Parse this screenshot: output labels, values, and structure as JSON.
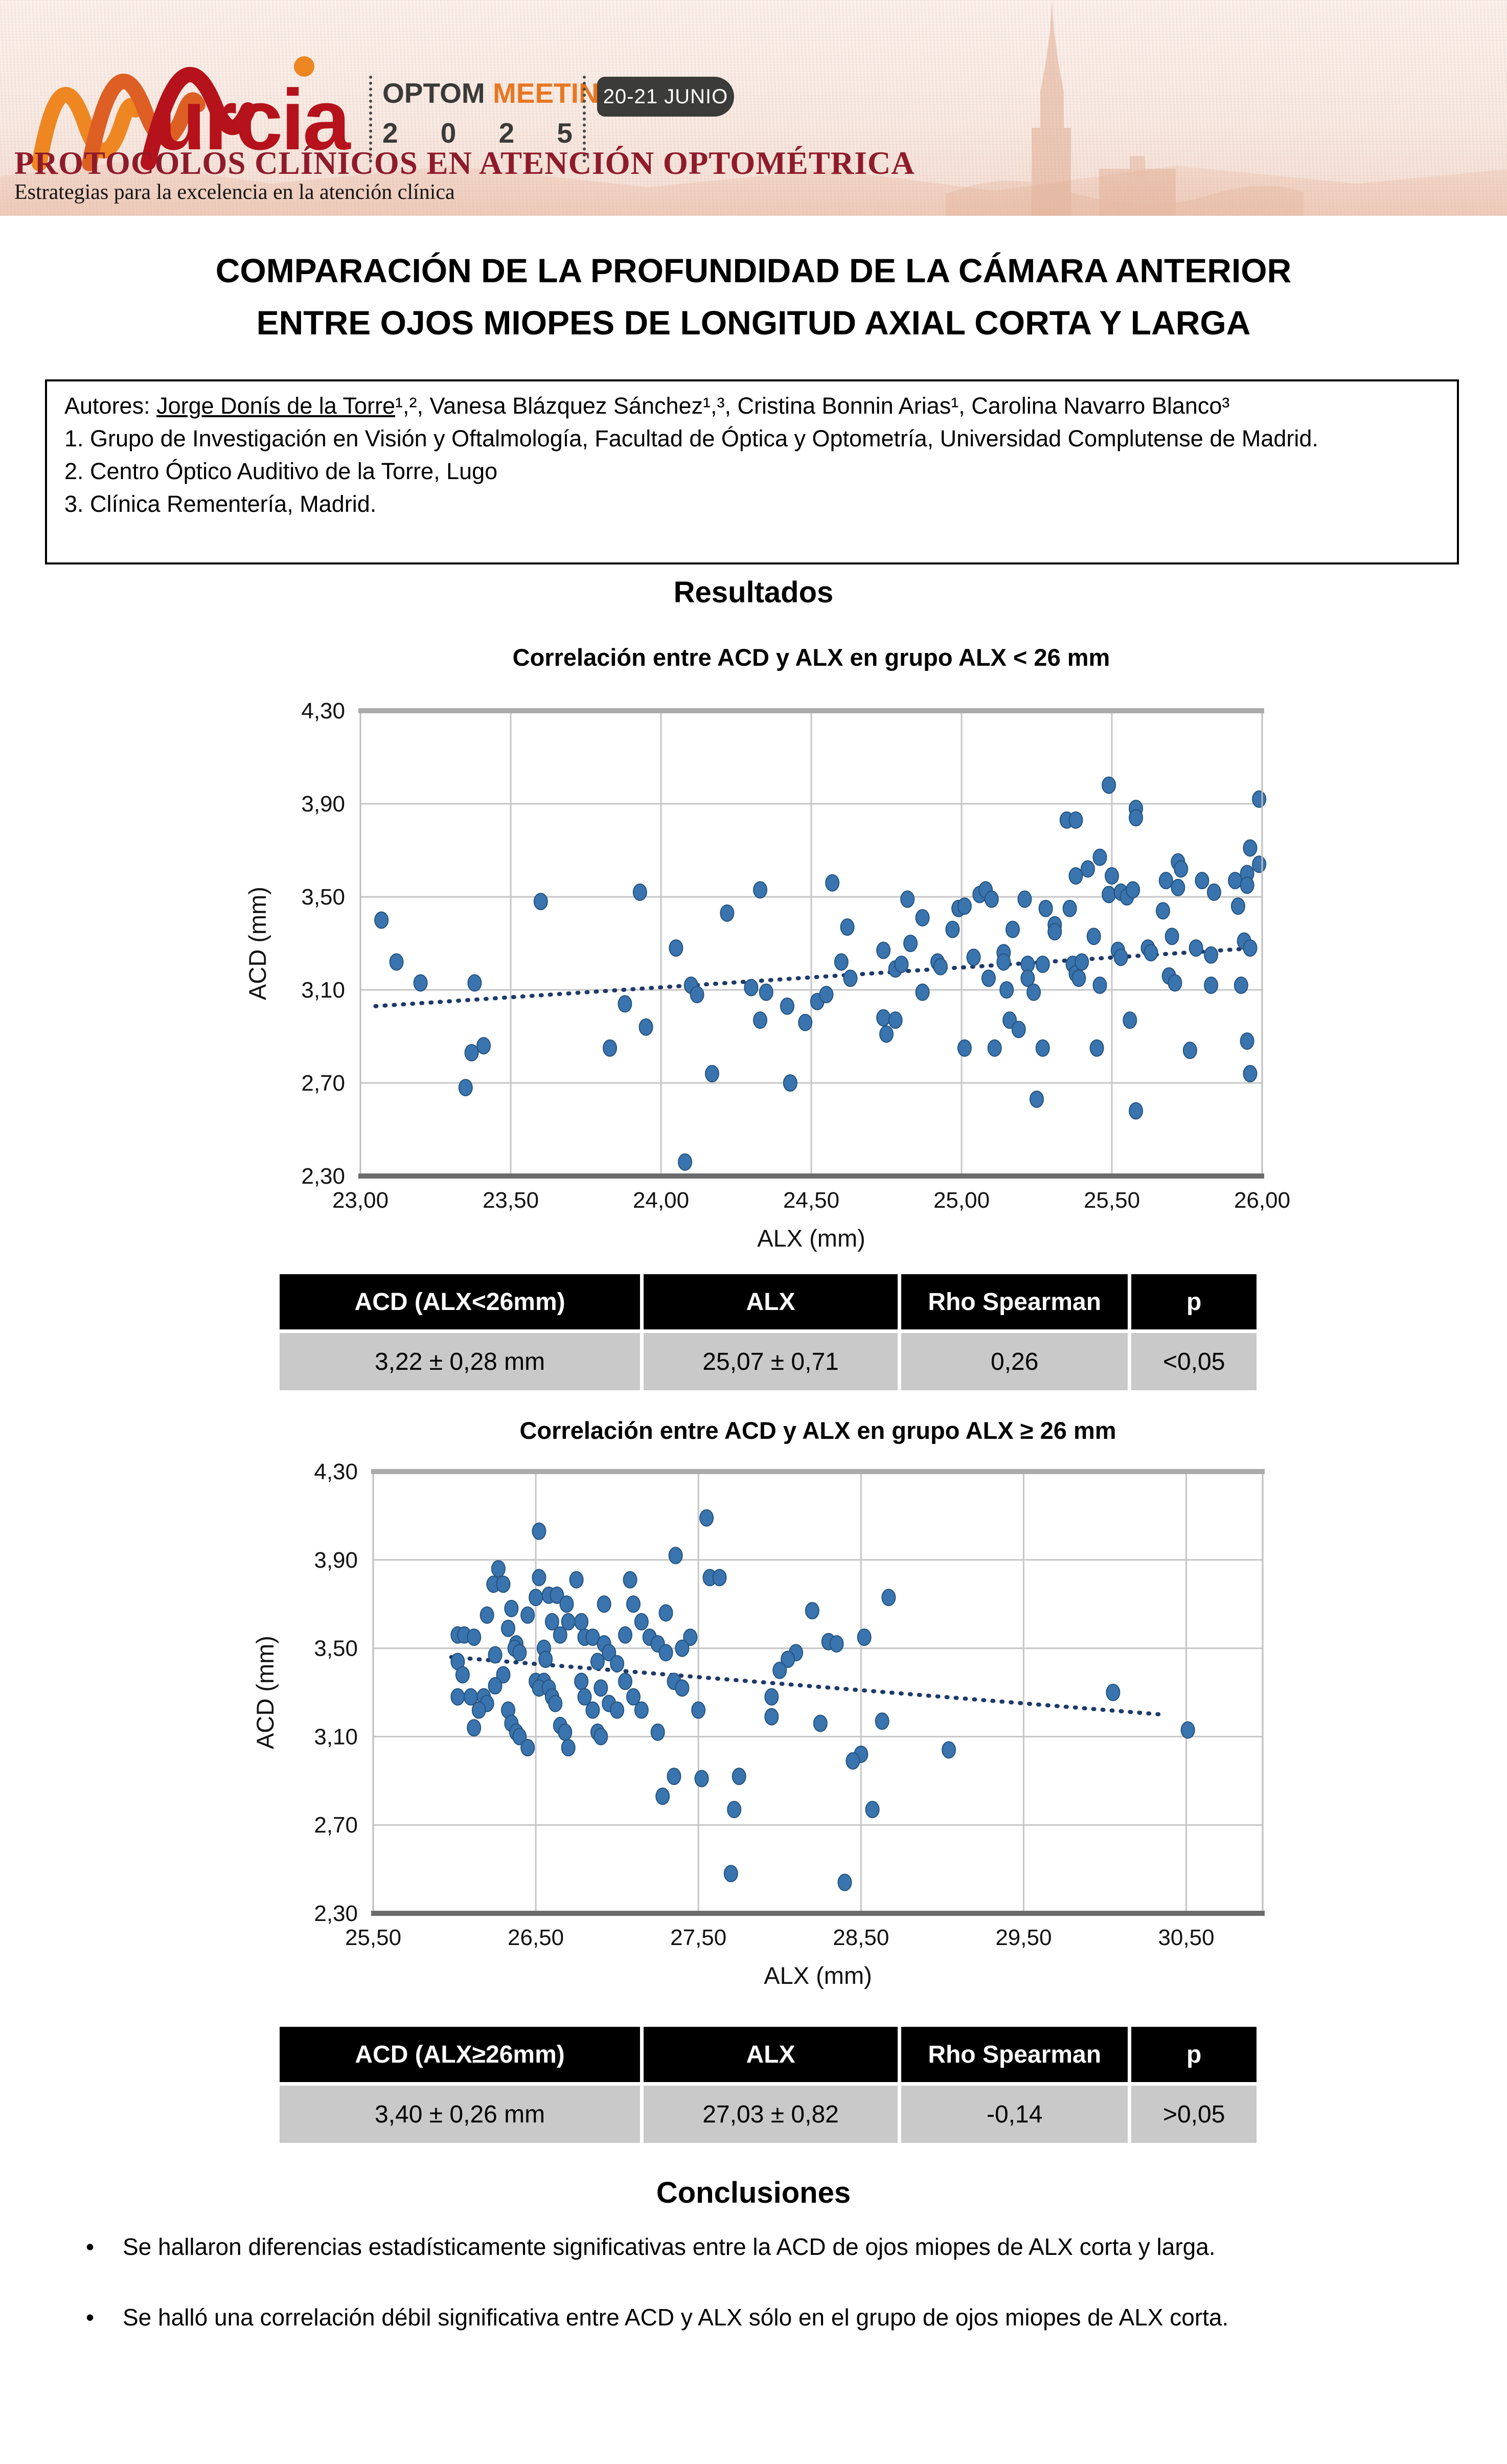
{
  "header": {
    "logo_city": "urcia",
    "brand_word1": "OPTOM",
    "brand_word2": "MEETING",
    "year_digits": [
      "2",
      "0",
      "2",
      "5"
    ],
    "date_badge": "20-21 JUNIO",
    "strapline": "PROTOCOLOS CLÍNICOS EN ATENCIÓN OPTOMÉTRICA",
    "substrapline": "Estrategias para la excelencia en la atención clínica",
    "colors": {
      "orange": "#ee8622",
      "red": "#b5121b",
      "dark": "#3b3b39",
      "strap_red": "#8e1b2b"
    }
  },
  "title_line1": "COMPARACIÓN DE LA PROFUNDIDAD DE LA CÁMARA ANTERIOR",
  "title_line2": "ENTRE OJOS MIOPES DE LONGITUD AXIAL CORTA Y LARGA",
  "authors": {
    "prefix": "Autores: ",
    "lead_author": "Jorge Donís de la Torre",
    "rest": "¹,², Vanesa Blázquez Sánchez¹,³, Cristina Bonnin Arias¹, Carolina Navarro Blanco³",
    "affiliations": [
      "1. Grupo de Investigación en Visión y Oftalmología, Facultad de Óptica y Optometría, Universidad Complutense de Madrid.",
      "2. Centro Óptico Auditivo de la Torre, Lugo",
      "3. Clínica Rementería, Madrid."
    ]
  },
  "sections": {
    "results": "Resultados",
    "conclusions": "Conclusiones"
  },
  "tables": [
    {
      "headers": [
        "ACD (ALX<26mm)",
        "ALX",
        "Rho Spearman",
        "p"
      ],
      "row": [
        "3,22 ± 0,28 mm",
        "25,07 ± 0,71",
        "0,26",
        "<0,05"
      ]
    },
    {
      "headers": [
        "ACD (ALX≥26mm)",
        "ALX",
        "Rho Spearman",
        "p"
      ],
      "row": [
        "3,40 ± 0,26 mm",
        "27,03 ± 0,82",
        "-0,14",
        ">0,05"
      ]
    }
  ],
  "conclusions": [
    "Se hallaron diferencias estadísticamente significativas entre la ACD de ojos miopes de ALX corta y larga.",
    "Se halló una correlación débil significativa entre ACD y ALX sólo en el grupo de ojos miopes de ALX corta."
  ],
  "chart_data": [
    {
      "type": "scatter",
      "title": "Correlación entre ACD y ALX en grupo ALX < 26 mm",
      "xlabel": "ALX (mm)",
      "ylabel": "ACD (mm)",
      "x_tick_labels": [
        "23,00",
        "23,50",
        "24,00",
        "24,50",
        "25,00",
        "25,50",
        "26,00"
      ],
      "x_tick_values": [
        23.0,
        23.5,
        24.0,
        24.5,
        25.0,
        25.5,
        26.0
      ],
      "x_extent": [
        23.0,
        26.0
      ],
      "y_tick_labels": [
        "4,30",
        "3,90",
        "3,50",
        "3,10",
        "2,70",
        "2,30"
      ],
      "y_tick_values": [
        4.3,
        3.9,
        3.5,
        3.1,
        2.7,
        2.3
      ],
      "ylim": [
        2.3,
        4.3
      ],
      "grid": true,
      "legend": "none",
      "point_color": "#3a74ae",
      "stats": {
        "acd_mean": "3,22 ± 0,28 mm",
        "alx_mean": "25,07 ± 0,71",
        "rho_spearman": 0.26,
        "p": "<0,05"
      },
      "trend": {
        "style": "dotted",
        "color": "#1f3a68",
        "x1": 23.05,
        "y1": 3.03,
        "x2": 25.98,
        "y2": 3.28
      },
      "points": [
        [
          23.07,
          3.4
        ],
        [
          23.12,
          3.22
        ],
        [
          23.2,
          3.13
        ],
        [
          23.38,
          3.13
        ],
        [
          23.37,
          2.83
        ],
        [
          23.41,
          2.86
        ],
        [
          23.35,
          2.68
        ],
        [
          23.6,
          3.48
        ],
        [
          23.83,
          2.85
        ],
        [
          23.93,
          3.52
        ],
        [
          23.88,
          3.04
        ],
        [
          23.95,
          2.94
        ],
        [
          24.08,
          2.36
        ],
        [
          24.05,
          3.28
        ],
        [
          24.1,
          3.12
        ],
        [
          24.12,
          3.08
        ],
        [
          24.17,
          2.74
        ],
        [
          24.22,
          3.43
        ],
        [
          24.33,
          3.53
        ],
        [
          24.3,
          3.11
        ],
        [
          24.35,
          3.09
        ],
        [
          24.33,
          2.97
        ],
        [
          24.42,
          3.03
        ],
        [
          24.43,
          2.7
        ],
        [
          24.48,
          2.96
        ],
        [
          24.52,
          3.05
        ],
        [
          24.55,
          3.08
        ],
        [
          24.57,
          3.56
        ],
        [
          24.62,
          3.37
        ],
        [
          24.6,
          3.22
        ],
        [
          24.63,
          3.15
        ],
        [
          24.74,
          3.27
        ],
        [
          24.74,
          2.98
        ],
        [
          24.75,
          2.91
        ],
        [
          24.78,
          3.19
        ],
        [
          24.78,
          2.97
        ],
        [
          24.8,
          3.21
        ],
        [
          24.82,
          3.49
        ],
        [
          24.83,
          3.3
        ],
        [
          24.87,
          3.41
        ],
        [
          24.87,
          3.09
        ],
        [
          24.92,
          3.22
        ],
        [
          24.93,
          3.2
        ],
        [
          24.97,
          3.36
        ],
        [
          24.99,
          3.45
        ],
        [
          25.01,
          3.46
        ],
        [
          25.01,
          2.85
        ],
        [
          25.04,
          3.24
        ],
        [
          25.06,
          3.51
        ],
        [
          25.08,
          3.53
        ],
        [
          25.09,
          3.15
        ],
        [
          25.1,
          3.49
        ],
        [
          25.11,
          2.85
        ],
        [
          25.14,
          3.26
        ],
        [
          25.14,
          3.22
        ],
        [
          25.15,
          3.1
        ],
        [
          25.16,
          2.97
        ],
        [
          25.17,
          3.36
        ],
        [
          25.19,
          2.93
        ],
        [
          25.21,
          3.49
        ],
        [
          25.22,
          3.21
        ],
        [
          25.22,
          3.15
        ],
        [
          25.24,
          3.09
        ],
        [
          25.25,
          2.63
        ],
        [
          25.27,
          3.21
        ],
        [
          25.27,
          2.85
        ],
        [
          25.28,
          3.45
        ],
        [
          25.31,
          3.38
        ],
        [
          25.31,
          3.35
        ],
        [
          25.35,
          3.83
        ],
        [
          25.36,
          3.45
        ],
        [
          25.37,
          3.21
        ],
        [
          25.38,
          3.83
        ],
        [
          25.38,
          3.59
        ],
        [
          25.38,
          3.17
        ],
        [
          25.39,
          3.15
        ],
        [
          25.4,
          3.22
        ],
        [
          25.42,
          3.62
        ],
        [
          25.44,
          3.33
        ],
        [
          25.45,
          2.85
        ],
        [
          25.46,
          3.67
        ],
        [
          25.46,
          3.12
        ],
        [
          25.49,
          3.98
        ],
        [
          25.49,
          3.51
        ],
        [
          25.5,
          3.59
        ],
        [
          25.52,
          3.27
        ],
        [
          25.53,
          3.52
        ],
        [
          25.53,
          3.24
        ],
        [
          25.55,
          3.5
        ],
        [
          25.56,
          2.97
        ],
        [
          25.57,
          3.53
        ],
        [
          25.58,
          3.88
        ],
        [
          25.58,
          3.84
        ],
        [
          25.58,
          2.58
        ],
        [
          25.62,
          3.28
        ],
        [
          25.63,
          3.26
        ],
        [
          25.67,
          3.44
        ],
        [
          25.68,
          3.57
        ],
        [
          25.69,
          3.16
        ],
        [
          25.7,
          3.33
        ],
        [
          25.71,
          3.13
        ],
        [
          25.72,
          3.65
        ],
        [
          25.72,
          3.54
        ],
        [
          25.73,
          3.62
        ],
        [
          25.76,
          2.84
        ],
        [
          25.78,
          3.28
        ],
        [
          25.8,
          3.57
        ],
        [
          25.83,
          3.25
        ],
        [
          25.83,
          3.12
        ],
        [
          25.84,
          3.52
        ],
        [
          25.91,
          3.57
        ],
        [
          25.92,
          3.46
        ],
        [
          25.93,
          3.12
        ],
        [
          25.94,
          3.31
        ],
        [
          25.95,
          3.6
        ],
        [
          25.95,
          3.55
        ],
        [
          25.95,
          2.88
        ],
        [
          25.96,
          3.71
        ],
        [
          25.96,
          3.28
        ],
        [
          25.96,
          2.74
        ],
        [
          25.99,
          3.92
        ],
        [
          25.99,
          3.64
        ]
      ]
    },
    {
      "type": "scatter",
      "title": "Correlación entre ACD y ALX en grupo ALX ≥ 26 mm",
      "xlabel": "ALX (mm)",
      "ylabel": "ACD (mm)",
      "x_tick_labels": [
        "25,50",
        "26,50",
        "27,50",
        "28,50",
        "29,50",
        "30,50"
      ],
      "x_tick_values": [
        25.5,
        26.5,
        27.5,
        28.5,
        29.5,
        30.5
      ],
      "x_extent": [
        25.5,
        30.97
      ],
      "y_tick_labels": [
        "4,30",
        "3,90",
        "3,50",
        "3,10",
        "2,70",
        "2,30"
      ],
      "y_tick_values": [
        4.3,
        3.9,
        3.5,
        3.1,
        2.7,
        2.3
      ],
      "ylim": [
        2.3,
        4.3
      ],
      "grid": true,
      "legend": "none",
      "point_color": "#3a74ae",
      "stats": {
        "acd_mean": "3,40 ± 0,26 mm",
        "alx_mean": "27,03 ± 0,82",
        "rho_spearman": -0.14,
        "p": ">0,05"
      },
      "trend": {
        "style": "dotted",
        "color": "#1f3a68",
        "x1": 25.98,
        "y1": 3.46,
        "x2": 30.35,
        "y2": 3.2
      },
      "points": [
        [
          26.52,
          4.03
        ],
        [
          27.55,
          4.09
        ],
        [
          27.36,
          3.92
        ],
        [
          26.27,
          3.86
        ],
        [
          26.24,
          3.79
        ],
        [
          26.3,
          3.79
        ],
        [
          26.52,
          3.82
        ],
        [
          26.75,
          3.81
        ],
        [
          27.08,
          3.81
        ],
        [
          27.57,
          3.82
        ],
        [
          27.63,
          3.82
        ],
        [
          26.5,
          3.73
        ],
        [
          26.58,
          3.74
        ],
        [
          26.63,
          3.74
        ],
        [
          26.69,
          3.7
        ],
        [
          26.92,
          3.7
        ],
        [
          27.1,
          3.7
        ],
        [
          28.67,
          3.73
        ],
        [
          28.2,
          3.67
        ],
        [
          26.2,
          3.65
        ],
        [
          26.35,
          3.68
        ],
        [
          26.45,
          3.65
        ],
        [
          27.3,
          3.66
        ],
        [
          26.6,
          3.62
        ],
        [
          26.7,
          3.62
        ],
        [
          26.78,
          3.62
        ],
        [
          27.15,
          3.62
        ],
        [
          26.33,
          3.59
        ],
        [
          26.02,
          3.56
        ],
        [
          26.06,
          3.56
        ],
        [
          26.12,
          3.55
        ],
        [
          26.65,
          3.56
        ],
        [
          26.8,
          3.55
        ],
        [
          26.85,
          3.55
        ],
        [
          27.05,
          3.56
        ],
        [
          27.2,
          3.55
        ],
        [
          28.52,
          3.55
        ],
        [
          27.45,
          3.55
        ],
        [
          26.38,
          3.52
        ],
        [
          26.92,
          3.52
        ],
        [
          27.25,
          3.52
        ],
        [
          28.3,
          3.53
        ],
        [
          28.35,
          3.52
        ],
        [
          26.37,
          3.5
        ],
        [
          26.55,
          3.5
        ],
        [
          27.4,
          3.5
        ],
        [
          26.4,
          3.48
        ],
        [
          26.95,
          3.48
        ],
        [
          27.3,
          3.48
        ],
        [
          28.1,
          3.48
        ],
        [
          26.02,
          3.44
        ],
        [
          26.88,
          3.44
        ],
        [
          27.0,
          3.43
        ],
        [
          28.05,
          3.45
        ],
        [
          26.25,
          3.47
        ],
        [
          26.56,
          3.45
        ],
        [
          26.05,
          3.38
        ],
        [
          26.3,
          3.38
        ],
        [
          28.0,
          3.4
        ],
        [
          26.5,
          3.35
        ],
        [
          26.55,
          3.35
        ],
        [
          26.78,
          3.35
        ],
        [
          27.05,
          3.35
        ],
        [
          27.35,
          3.35
        ],
        [
          26.25,
          3.33
        ],
        [
          26.52,
          3.32
        ],
        [
          26.58,
          3.32
        ],
        [
          26.9,
          3.32
        ],
        [
          27.4,
          3.32
        ],
        [
          30.05,
          3.3
        ],
        [
          26.02,
          3.28
        ],
        [
          26.1,
          3.28
        ],
        [
          26.18,
          3.28
        ],
        [
          26.6,
          3.28
        ],
        [
          26.8,
          3.28
        ],
        [
          27.1,
          3.28
        ],
        [
          27.95,
          3.28
        ],
        [
          26.2,
          3.25
        ],
        [
          26.62,
          3.25
        ],
        [
          26.95,
          3.25
        ],
        [
          26.15,
          3.22
        ],
        [
          26.33,
          3.22
        ],
        [
          26.85,
          3.22
        ],
        [
          27.0,
          3.22
        ],
        [
          27.15,
          3.22
        ],
        [
          27.5,
          3.22
        ],
        [
          26.35,
          3.16
        ],
        [
          26.65,
          3.15
        ],
        [
          28.25,
          3.16
        ],
        [
          26.38,
          3.12
        ],
        [
          26.68,
          3.12
        ],
        [
          26.88,
          3.12
        ],
        [
          27.25,
          3.12
        ],
        [
          26.12,
          3.14
        ],
        [
          26.4,
          3.1
        ],
        [
          26.9,
          3.1
        ],
        [
          27.95,
          3.19
        ],
        [
          28.63,
          3.17
        ],
        [
          30.51,
          3.13
        ],
        [
          26.45,
          3.05
        ],
        [
          26.7,
          3.05
        ],
        [
          29.04,
          3.04
        ],
        [
          28.5,
          3.02
        ],
        [
          27.35,
          2.92
        ],
        [
          27.52,
          2.91
        ],
        [
          27.75,
          2.92
        ],
        [
          28.45,
          2.99
        ],
        [
          27.28,
          2.83
        ],
        [
          27.72,
          2.77
        ],
        [
          28.57,
          2.77
        ],
        [
          27.7,
          2.48
        ],
        [
          28.4,
          2.44
        ]
      ]
    }
  ]
}
